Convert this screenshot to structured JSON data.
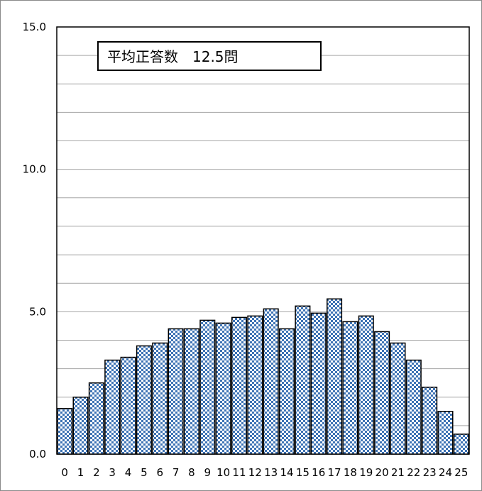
{
  "chart_data": {
    "type": "bar",
    "categories": [
      "0",
      "1",
      "2",
      "3",
      "4",
      "5",
      "6",
      "7",
      "8",
      "9",
      "10",
      "11",
      "12",
      "13",
      "14",
      "15",
      "16",
      "17",
      "18",
      "19",
      "20",
      "21",
      "22",
      "23",
      "24",
      "25"
    ],
    "values": [
      1.6,
      2.0,
      2.5,
      3.3,
      3.4,
      3.8,
      3.9,
      4.4,
      4.4,
      4.7,
      4.6,
      4.8,
      4.85,
      5.1,
      4.4,
      5.2,
      4.95,
      5.45,
      4.65,
      4.85,
      4.3,
      3.9,
      3.3,
      2.35,
      1.5,
      0.7
    ],
    "ylim": [
      0,
      15
    ],
    "y_ticks": [
      "0.0",
      "5.0",
      "10.0",
      "15.0"
    ],
    "y_tick_values": [
      0,
      5,
      10,
      15
    ],
    "minor_grid_step": 1,
    "grid": true,
    "annotation": "平均正答数　12.5問",
    "colors": {
      "bar_fill": "#3f74b5",
      "bar_check": "#ffffff",
      "bar_edge": "#000000",
      "grid": "#a6a6a6",
      "axis": "#000000"
    }
  }
}
